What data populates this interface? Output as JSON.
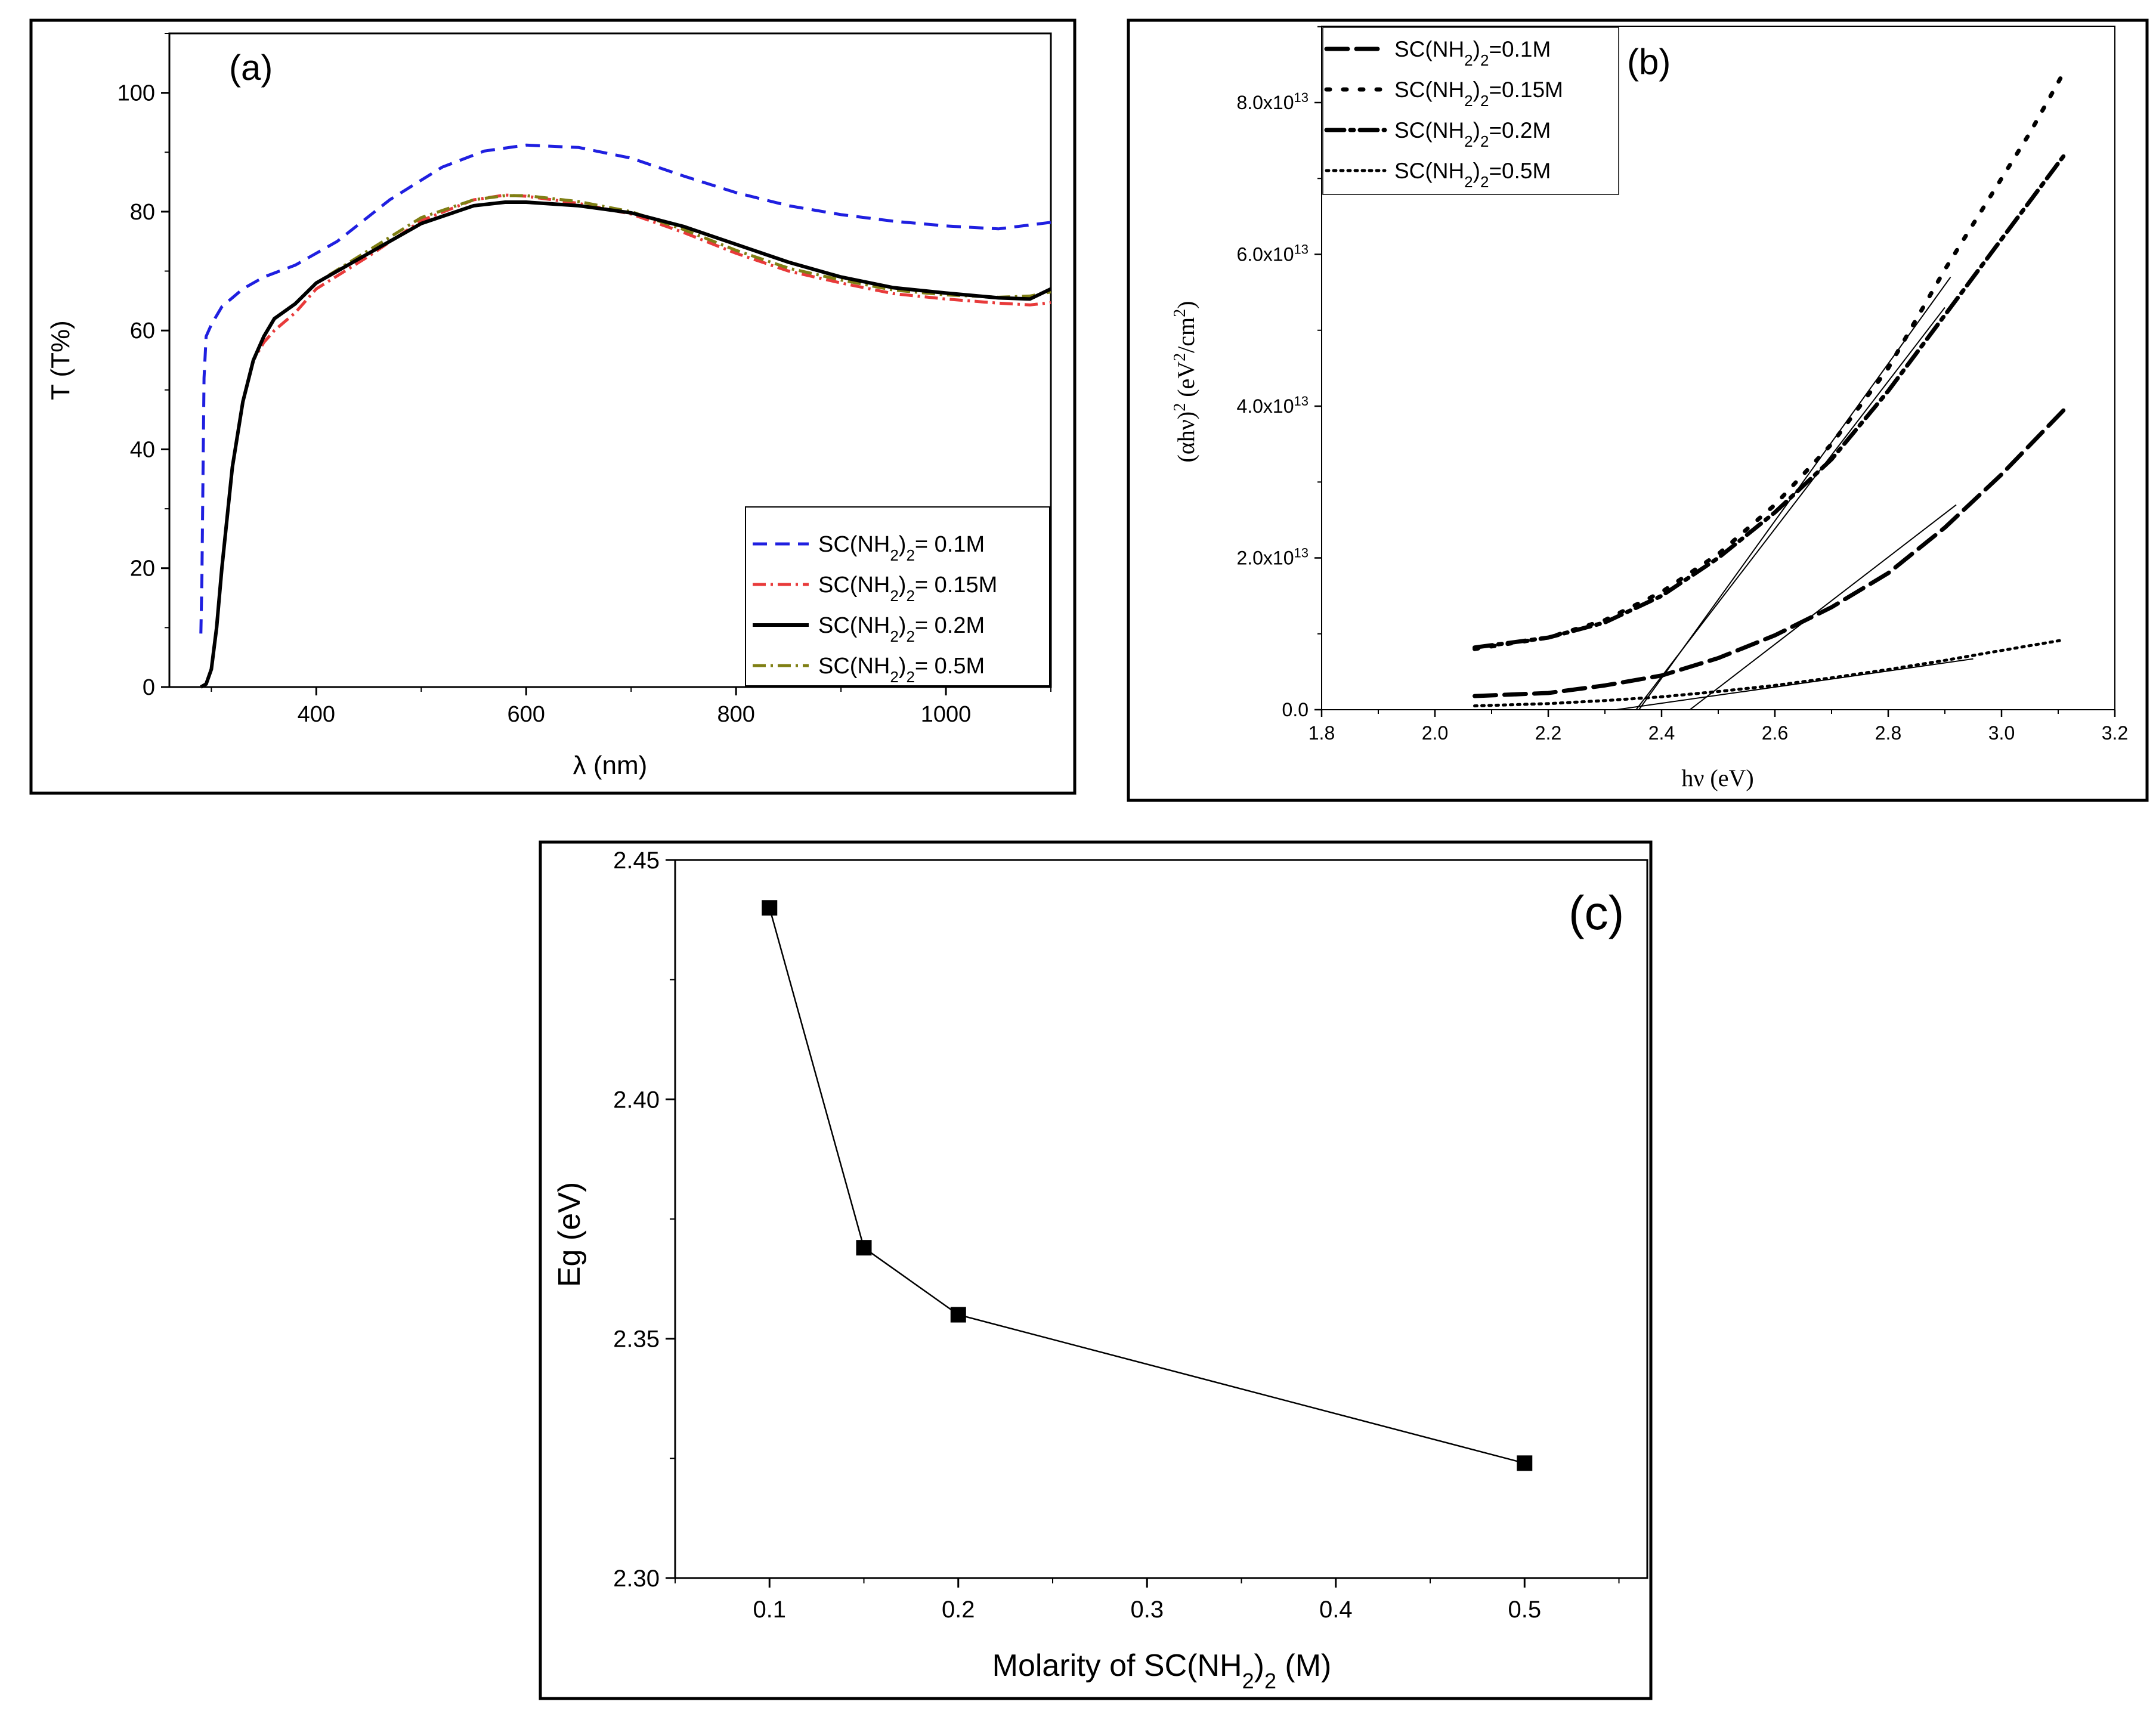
{
  "chart_data": [
    {
      "id": "a",
      "type": "line",
      "panel_label": "(a)",
      "xlabel": "λ (nm)",
      "ylabel": "T (T%)",
      "xlim": [
        260,
        1100
      ],
      "ylim": [
        0,
        110
      ],
      "xticks": [
        400,
        600,
        800,
        1000
      ],
      "yticks": [
        0,
        20,
        40,
        60,
        80,
        100
      ],
      "legend_position": "bottom-right",
      "series": [
        {
          "name": "SC(NH2)2= 0.1M",
          "label_main": "SC(NH",
          "label_sub": "2",
          "label_tail": ")",
          "label_sub2": "2",
          "label_end": "= 0.1M",
          "color": "#1f1fe0",
          "dash": "24,14",
          "x": [
            290,
            291,
            292,
            293,
            295,
            300,
            310,
            330,
            350,
            380,
            420,
            470,
            520,
            560,
            600,
            650,
            700,
            750,
            800,
            850,
            900,
            950,
            1000,
            1050,
            1100
          ],
          "y": [
            9,
            18,
            35,
            52,
            59,
            61,
            64,
            67,
            69,
            71,
            75,
            82,
            87.5,
            90.2,
            91.2,
            90.8,
            89,
            86,
            83.2,
            81,
            79.5,
            78.4,
            77.6,
            77.1,
            78.2
          ]
        },
        {
          "name": "SC(NH2)2= 0.15M",
          "label_main": "SC(NH",
          "label_sub": "2",
          "label_tail": ")",
          "label_sub2": "2",
          "label_end": "= 0.15M",
          "color": "#e83a3a",
          "dash": "22,8,4,8",
          "x": [
            290,
            295,
            300,
            305,
            310,
            320,
            330,
            340,
            350,
            360,
            380,
            400,
            450,
            500,
            550,
            580,
            600,
            650,
            700,
            750,
            800,
            850,
            900,
            950,
            1000,
            1050,
            1080,
            1100
          ],
          "y": [
            0,
            0.5,
            3,
            10,
            20,
            37,
            48,
            55,
            58,
            60,
            63,
            67,
            72.5,
            78.5,
            82,
            82.8,
            82.6,
            81.4,
            79.6,
            76.5,
            73,
            70,
            68,
            66.2,
            65.3,
            64.6,
            64.3,
            64.7
          ]
        },
        {
          "name": "SC(NH2)2= 0.2M",
          "label_main": "SC(NH",
          "label_sub": "2",
          "label_tail": ")",
          "label_sub2": "2",
          "label_end": "= 0.2M",
          "color": "#000000",
          "dash": "",
          "x": [
            290,
            295,
            300,
            305,
            310,
            320,
            330,
            340,
            350,
            360,
            380,
            400,
            450,
            500,
            550,
            580,
            600,
            650,
            700,
            750,
            800,
            850,
            900,
            950,
            1000,
            1050,
            1080,
            1100
          ],
          "y": [
            0,
            0.5,
            3,
            10,
            20,
            37,
            48,
            55,
            59,
            62,
            64.5,
            68,
            73,
            78,
            81,
            81.6,
            81.6,
            81,
            79.8,
            77.5,
            74.5,
            71.5,
            69,
            67.2,
            66.3,
            65.5,
            65.3,
            67
          ]
        },
        {
          "name": "SC(NH2)2= 0.5M",
          "label_main": "SC(NH",
          "label_sub": "2",
          "label_tail": ")",
          "label_sub2": "2",
          "label_end": "= 0.5M",
          "color": "#7f7f14",
          "dash": "22,8,4,8",
          "x": [
            290,
            295,
            300,
            305,
            310,
            320,
            330,
            340,
            350,
            360,
            380,
            400,
            450,
            500,
            550,
            580,
            600,
            650,
            700,
            750,
            800,
            850,
            900,
            950,
            1000,
            1050,
            1080,
            1100
          ],
          "y": [
            0,
            0.5,
            3,
            10,
            20,
            37,
            48,
            55,
            59,
            62,
            64.5,
            68,
            73.5,
            79,
            82,
            82.7,
            82.7,
            81.7,
            80,
            77,
            73.5,
            70.5,
            68.5,
            66.8,
            66,
            65.6,
            65.8,
            66.5
          ]
        }
      ]
    },
    {
      "id": "b",
      "type": "line",
      "panel_label": "(b)",
      "xlabel": "hν (eV)",
      "ylabel_main": "(αhν)",
      "ylabel_sup": "2",
      "ylabel_units_a": " (eV",
      "ylabel_units_sup1": "2",
      "ylabel_units_b": "/cm",
      "ylabel_units_sup2": "2",
      "ylabel_units_c": ")",
      "xlim": [
        1.8,
        3.2
      ],
      "ylim": [
        0,
        90000000000000.0
      ],
      "xticks": [
        1.8,
        2.0,
        2.2,
        2.4,
        2.6,
        2.8,
        3.0,
        3.2
      ],
      "xtick_labels": [
        "1.8",
        "2.0",
        "2.2",
        "2.4",
        "2.6",
        "2.8",
        "3.0",
        "3.2"
      ],
      "yticks": [
        0,
        20000000000000.0,
        40000000000000.0,
        60000000000000.0,
        80000000000000.0
      ],
      "ytick_labels": [
        {
          "main": "0.0",
          "sup": ""
        },
        {
          "main": "2.0x10",
          "sup": "13"
        },
        {
          "main": "4.0x10",
          "sup": "13"
        },
        {
          "main": "6.0x10",
          "sup": "13"
        },
        {
          "main": "8.0x10",
          "sup": "13"
        }
      ],
      "legend_position": "top-left",
      "series": [
        {
          "name": "SC(NH2)2=0.1M",
          "label_main": "SC(NH",
          "label_sub": "2",
          "label_tail": ")",
          "label_sub2": "2",
          "label_end": "=0.1M",
          "dash": "36,14",
          "x": [
            2.07,
            2.2,
            2.3,
            2.4,
            2.5,
            2.6,
            2.7,
            2.8,
            2.9,
            3.0,
            3.11
          ],
          "y": [
            1800000000000.0,
            2200000000000.0,
            3200000000000.0,
            4500000000000.0,
            6800000000000.0,
            9800000000000.0,
            13500000000000.0,
            18000000000000.0,
            24000000000000.0,
            31000000000000.0,
            39500000000000.0
          ]
        },
        {
          "name": "SC(NH2)2=0.15M",
          "label_main": "SC(NH",
          "label_sub": "2",
          "label_tail": ")",
          "label_sub2": "2",
          "label_end": "=0.15M",
          "dash": "6,22",
          "x": [
            2.07,
            2.2,
            2.3,
            2.4,
            2.5,
            2.6,
            2.7,
            2.8,
            2.9,
            3.0,
            3.05,
            3.11
          ],
          "y": [
            8000000000000.0,
            9500000000000.0,
            11800000000000.0,
            15500000000000.0,
            20500000000000.0,
            27000000000000.0,
            35000000000000.0,
            45000000000000.0,
            58000000000000.0,
            70000000000000.0,
            76000000000000.0,
            84000000000000.0
          ]
        },
        {
          "name": "SC(NH2)2=0.2M",
          "label_main": "SC(NH",
          "label_sub": "2",
          "label_tail": ")",
          "label_sub2": "2",
          "label_end": "=0.2M",
          "dash": "30,10,6,10",
          "x": [
            2.07,
            2.2,
            2.3,
            2.4,
            2.5,
            2.6,
            2.7,
            2.8,
            2.9,
            3.0,
            3.11
          ],
          "y": [
            8200000000000.0,
            9500000000000.0,
            11500000000000.0,
            15000000000000.0,
            20000000000000.0,
            26000000000000.0,
            33000000000000.0,
            42000000000000.0,
            52000000000000.0,
            62000000000000.0,
            73000000000000.0
          ]
        },
        {
          "name": "SC(NH2)2=0.5M",
          "label_main": "SC(NH",
          "label_sub": "2",
          "label_tail": ")",
          "label_sub2": "2",
          "label_end": "=0.5M",
          "dash": "4,8",
          "x": [
            2.07,
            2.2,
            2.3,
            2.4,
            2.5,
            2.6,
            2.7,
            2.8,
            2.9,
            3.0,
            3.11
          ],
          "y": [
            500000000000.0,
            800000000000.0,
            1200000000000.0,
            1700000000000.0,
            2400000000000.0,
            3200000000000.0,
            4200000000000.0,
            5300000000000.0,
            6500000000000.0,
            7800000000000.0,
            9200000000000.0
          ]
        }
      ],
      "fit_lines": [
        {
          "x": [
            2.36,
            2.91
          ],
          "y": [
            0,
            57000000000000.0
          ]
        },
        {
          "x": [
            2.355,
            2.9
          ],
          "y": [
            0,
            53000000000000.0
          ]
        },
        {
          "x": [
            2.45,
            2.92
          ],
          "y": [
            0,
            27000000000000.0
          ]
        },
        {
          "x": [
            2.32,
            2.95
          ],
          "y": [
            0,
            6700000000000.0
          ]
        }
      ]
    },
    {
      "id": "c",
      "type": "line",
      "panel_label": "(c)",
      "xlabel_main": "Molarity of SC(NH",
      "xlabel_sub": "2",
      "xlabel_mid": ")",
      "xlabel_sub2": "2",
      "xlabel_end": " (M)",
      "ylabel": "Eg (eV)",
      "xlim": [
        0.05,
        0.565
      ],
      "ylim": [
        2.3,
        2.45
      ],
      "xticks": [
        0.1,
        0.2,
        0.3,
        0.4,
        0.5
      ],
      "xtick_labels": [
        "0.1",
        "0.2",
        "0.3",
        "0.4",
        "0.5"
      ],
      "yticks": [
        2.3,
        2.35,
        2.4,
        2.45
      ],
      "ytick_labels": [
        "2.30",
        "2.35",
        "2.40",
        "2.45"
      ],
      "series": [
        {
          "name": "Eg",
          "x": [
            0.1,
            0.15,
            0.2,
            0.5
          ],
          "y": [
            2.44,
            2.369,
            2.355,
            2.324
          ]
        }
      ]
    }
  ]
}
